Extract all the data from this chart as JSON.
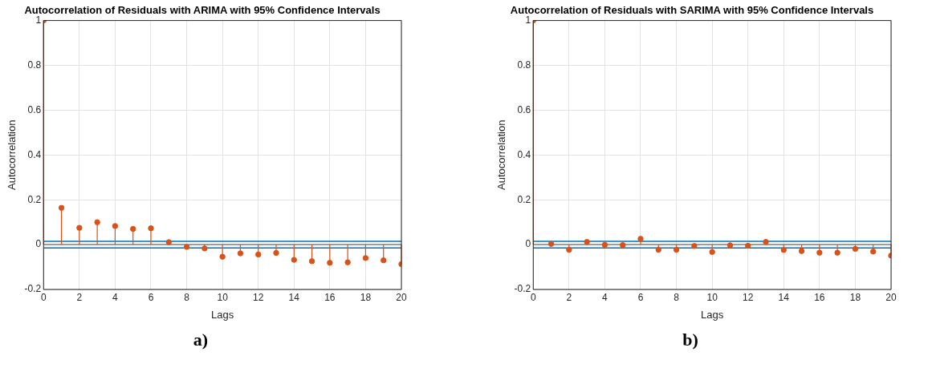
{
  "chart_data": [
    {
      "type": "lollipop",
      "title": "Autocorrelation of Residuals with ARIMA with 95% Confidence Intervals",
      "xlabel": "Lags",
      "ylabel": "Autocorrelation",
      "x": [
        0,
        1,
        2,
        3,
        4,
        5,
        6,
        7,
        8,
        9,
        10,
        11,
        12,
        13,
        14,
        15,
        16,
        17,
        18,
        19,
        20
      ],
      "values": [
        1,
        0.164,
        0.075,
        0.1,
        0.083,
        0.07,
        0.073,
        0.011,
        -0.01,
        -0.017,
        -0.054,
        -0.039,
        -0.044,
        -0.037,
        -0.068,
        -0.074,
        -0.081,
        -0.079,
        -0.06,
        -0.07,
        -0.087
      ],
      "color": "#d95319",
      "xlim": [
        0,
        20
      ],
      "xticks": [
        0,
        2,
        4,
        6,
        8,
        10,
        12,
        14,
        16,
        18,
        20
      ],
      "ylim": [
        -0.2,
        1
      ],
      "yticks": [
        -0.2,
        0,
        0.2,
        0.4,
        0.6,
        0.8,
        1
      ],
      "grid": true,
      "marker": "circle",
      "ref_lines": [
        {
          "axis": "y",
          "value": 0,
          "color": "#808080"
        },
        {
          "axis": "y",
          "value": 0.015,
          "color": "#0072bd"
        },
        {
          "axis": "y",
          "value": -0.015,
          "color": "#0072bd"
        }
      ],
      "annotations": [
        "a)"
      ]
    },
    {
      "type": "lollipop",
      "title": "Autocorrelation of Residuals with SARIMA with 95% Confidence Intervals",
      "xlabel": "Lags",
      "ylabel": "Autocorrelation",
      "x": [
        0,
        1,
        2,
        3,
        4,
        5,
        6,
        7,
        8,
        9,
        10,
        11,
        12,
        13,
        14,
        15,
        16,
        17,
        18,
        19,
        20
      ],
      "values": [
        1,
        0.003,
        -0.023,
        0.012,
        -0.001,
        -0.002,
        0.026,
        -0.023,
        -0.023,
        -0.006,
        -0.033,
        -0.003,
        -0.005,
        0.012,
        -0.024,
        -0.029,
        -0.036,
        -0.036,
        -0.019,
        -0.031,
        -0.049
      ],
      "color": "#d95319",
      "xlim": [
        0,
        20
      ],
      "xticks": [
        0,
        2,
        4,
        6,
        8,
        10,
        12,
        14,
        16,
        18,
        20
      ],
      "ylim": [
        -0.2,
        1
      ],
      "yticks": [
        -0.2,
        0,
        0.2,
        0.4,
        0.6,
        0.8,
        1
      ],
      "grid": true,
      "marker": "circle",
      "ref_lines": [
        {
          "axis": "y",
          "value": 0,
          "color": "#808080"
        },
        {
          "axis": "y",
          "value": 0.015,
          "color": "#0072bd"
        },
        {
          "axis": "y",
          "value": -0.015,
          "color": "#0072bd"
        }
      ],
      "annotations": [
        "b)"
      ]
    }
  ]
}
